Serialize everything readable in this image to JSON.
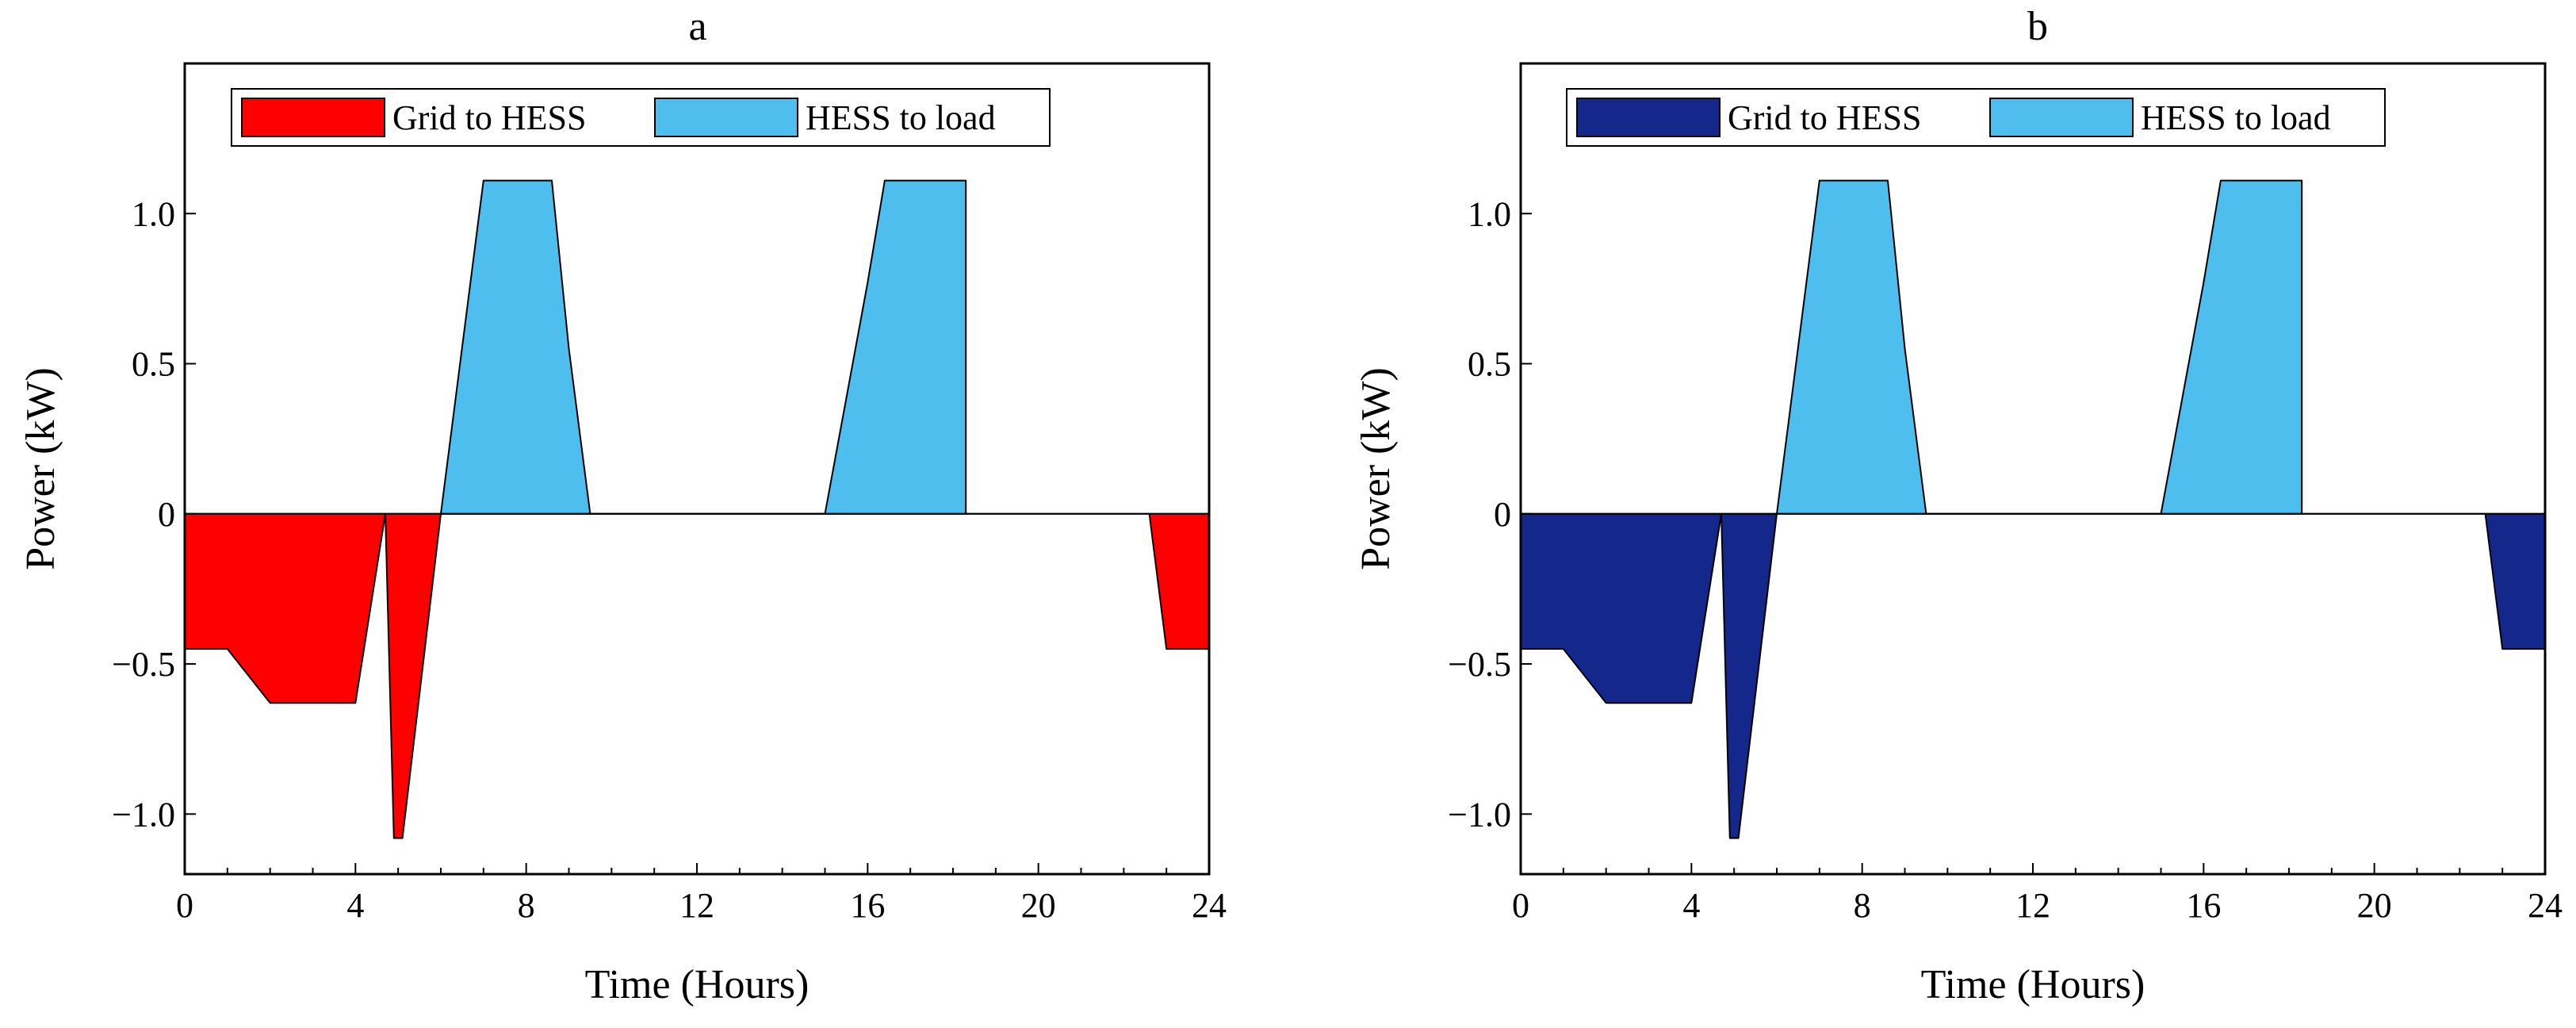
{
  "chart_data": [
    {
      "type": "area",
      "title": "a",
      "xlabel": "Time (Hours)",
      "ylabel": "Power (kW)",
      "xlim": [
        0,
        24
      ],
      "ylim": [
        -1.2,
        1.5
      ],
      "xticks": [
        0,
        4,
        8,
        12,
        16,
        20,
        24
      ],
      "xtick_labels": [
        "0",
        "4",
        "8",
        "12",
        "16",
        "20",
        "24"
      ],
      "yticks": [
        -1.0,
        -0.5,
        0,
        0.5,
        1.0
      ],
      "ytick_labels": [
        "−1.0",
        "−0.5",
        "0",
        "0.5",
        "1.0"
      ],
      "grid": false,
      "legend_position": "top-left",
      "series": [
        {
          "name": "Grid to HESS",
          "color": "#ff0000",
          "x": [
            0,
            1,
            2,
            3,
            4,
            4.7,
            4.9,
            5.1,
            6.0,
            22.6,
            23.0,
            24
          ],
          "values": [
            -0.45,
            -0.45,
            -0.63,
            -0.63,
            -0.63,
            0,
            -1.08,
            -1.08,
            0,
            0,
            -0.45,
            -0.45
          ]
        },
        {
          "name": "HESS to load",
          "color": "#4dbeee",
          "x": [
            6.0,
            7.0,
            8.0,
            8.6,
            9.0,
            9.5,
            15.0,
            16.0,
            16.4,
            17.0,
            18.3
          ],
          "values": [
            0,
            1.11,
            1.11,
            1.11,
            0.55,
            0,
            0,
            0.77,
            1.11,
            1.11,
            1.11
          ]
        }
      ]
    },
    {
      "type": "area",
      "title": "b",
      "xlabel": "Time (Hours)",
      "ylabel": "Power (kW)",
      "xlim": [
        0,
        24
      ],
      "ylim": [
        -1.2,
        1.5
      ],
      "xticks": [
        0,
        4,
        8,
        12,
        16,
        20,
        24
      ],
      "xtick_labels": [
        "0",
        "4",
        "8",
        "12",
        "16",
        "20",
        "24"
      ],
      "yticks": [
        -1.0,
        -0.5,
        0,
        0.5,
        1.0
      ],
      "ytick_labels": [
        "−1.0",
        "−0.5",
        "0",
        "0.5",
        "1.0"
      ],
      "grid": false,
      "legend_position": "top-left",
      "series": [
        {
          "name": "Grid to HESS",
          "color": "#14288c",
          "x": [
            0,
            1,
            2,
            3,
            4,
            4.7,
            4.9,
            5.1,
            6.0,
            22.6,
            23.0,
            24
          ],
          "values": [
            -0.45,
            -0.45,
            -0.63,
            -0.63,
            -0.63,
            0,
            -1.08,
            -1.08,
            0,
            0,
            -0.45,
            -0.45
          ]
        },
        {
          "name": "HESS to load",
          "color": "#4dbeee",
          "x": [
            6.0,
            7.0,
            8.0,
            8.6,
            9.0,
            9.5,
            15.0,
            16.0,
            16.4,
            17.0,
            18.3
          ],
          "values": [
            0,
            1.11,
            1.11,
            1.11,
            0.55,
            0,
            0,
            0.77,
            1.11,
            1.11,
            1.11
          ]
        }
      ]
    }
  ]
}
